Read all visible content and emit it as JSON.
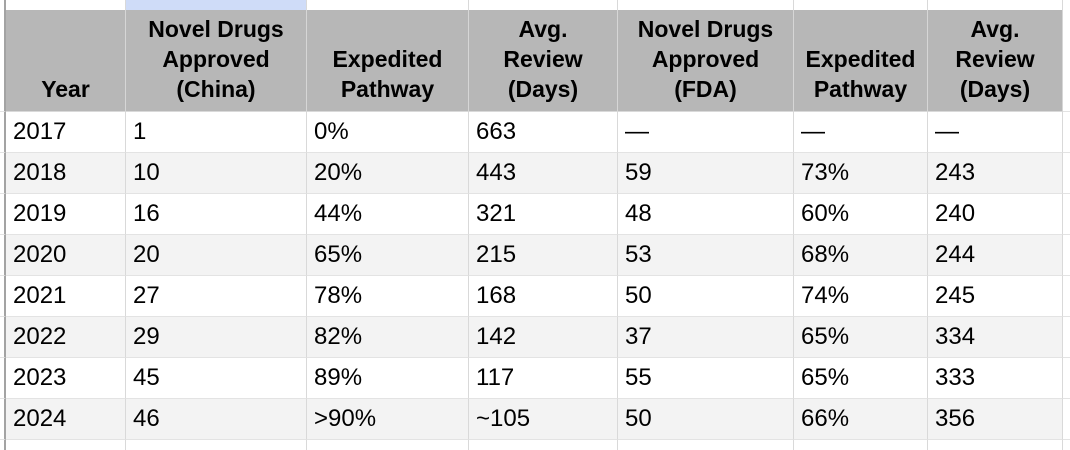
{
  "table": {
    "columns": [
      "Year",
      "Novel Drugs\nApproved\n(China)",
      "Expedited\nPathway",
      "Avg.\nReview\n(Days)",
      "Novel Drugs\nApproved\n(FDA)",
      "Expedited\nPathway",
      "Avg.\nReview\n(Days)"
    ],
    "column_names": [
      "year",
      "china-novel-drugs-approved",
      "china-expedited-pathway",
      "china-avg-review-days",
      "fda-novel-drugs-approved",
      "fda-expedited-pathway",
      "fda-avg-review-days"
    ],
    "rows": [
      [
        "2017",
        "1",
        "0%",
        "663",
        "—",
        "—",
        "—"
      ],
      [
        "2018",
        "10",
        "20%",
        "443",
        "59",
        "73%",
        "243"
      ],
      [
        "2019",
        "16",
        "44%",
        "321",
        "48",
        "60%",
        "240"
      ],
      [
        "2020",
        "20",
        "65%",
        "215",
        "53",
        "68%",
        "244"
      ],
      [
        "2021",
        "27",
        "78%",
        "168",
        "50",
        "74%",
        "245"
      ],
      [
        "2022",
        "29",
        "82%",
        "142",
        "37",
        "65%",
        "334"
      ],
      [
        "2023",
        "45",
        "89%",
        "117",
        "55",
        "65%",
        "333"
      ],
      [
        "2024",
        "46",
        ">90%",
        "~105",
        "50",
        "66%",
        "356"
      ]
    ]
  },
  "colors": {
    "header_bg": "#b7b7b7",
    "row_band": "#f3f3f3",
    "row_bg": "#ffffff",
    "selected_cell": "#cfdcf8",
    "gridline": "#d9d9d9",
    "text": "#000000"
  }
}
